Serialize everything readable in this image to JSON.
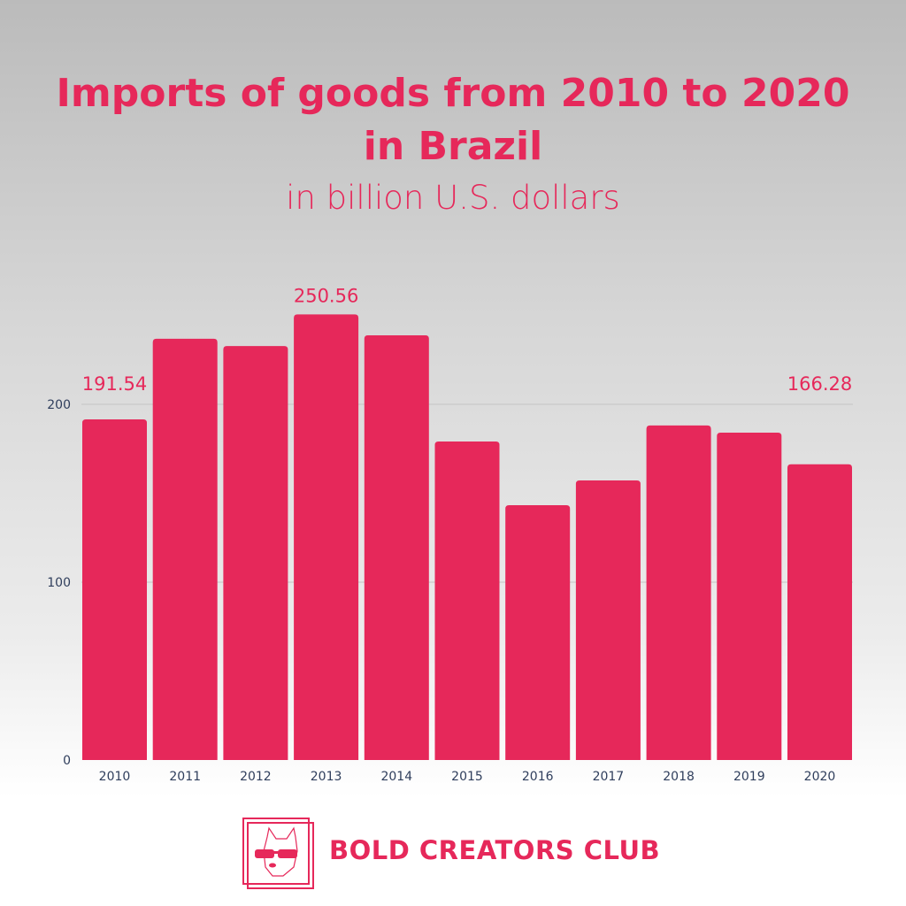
{
  "chart_data": {
    "type": "bar",
    "title": "Imports of goods from 2010 to 2020 in Brazil",
    "subtitle": "in billion U.S. dollars",
    "categories": [
      "2010",
      "2011",
      "2012",
      "2013",
      "2014",
      "2015",
      "2016",
      "2017",
      "2018",
      "2019",
      "2020"
    ],
    "values": [
      191.54,
      236.9,
      232.8,
      250.56,
      238.8,
      179.1,
      143.3,
      157.2,
      188.1,
      184.1,
      166.28
    ],
    "data_labels": {
      "2010": "191.54",
      "2013": "250.56",
      "2020": "166.28"
    },
    "ylim": [
      0,
      260
    ],
    "yticks": [
      0,
      100,
      200
    ],
    "grid": true,
    "bar_color": "#e6285a",
    "label_color": "#e6285a",
    "tick_color": "#2f3e5c"
  },
  "branding": {
    "name": "BOLD CREATORS CLUB",
    "logo": "french-bulldog-sunglasses-logo"
  }
}
